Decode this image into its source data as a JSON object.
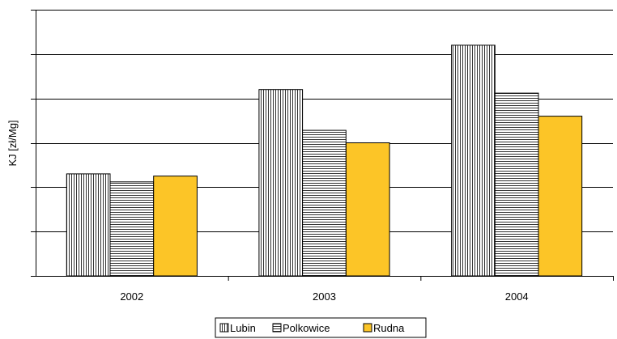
{
  "chart_data": {
    "type": "bar",
    "title": "",
    "xlabel": "",
    "ylabel": "KJ [zł/Mg]",
    "categories": [
      "2002",
      "2003",
      "2004"
    ],
    "ylim": [
      0,
      6
    ],
    "y_tick_count": 7,
    "y_tick_labels_shown": false,
    "grid": true,
    "legend_position": "bottom",
    "series": [
      {
        "name": "Lubin",
        "values": [
          2.3,
          4.2,
          5.2
        ],
        "pattern": "vertical-lines",
        "color": "#ffffff"
      },
      {
        "name": "Polkowice",
        "values": [
          2.12,
          3.28,
          4.12
        ],
        "pattern": "horizontal-lines",
        "color": "#ffffff"
      },
      {
        "name": "Rudna",
        "values": [
          2.25,
          3.0,
          3.6
        ],
        "pattern": "solid",
        "color": "#fcc527"
      }
    ]
  }
}
